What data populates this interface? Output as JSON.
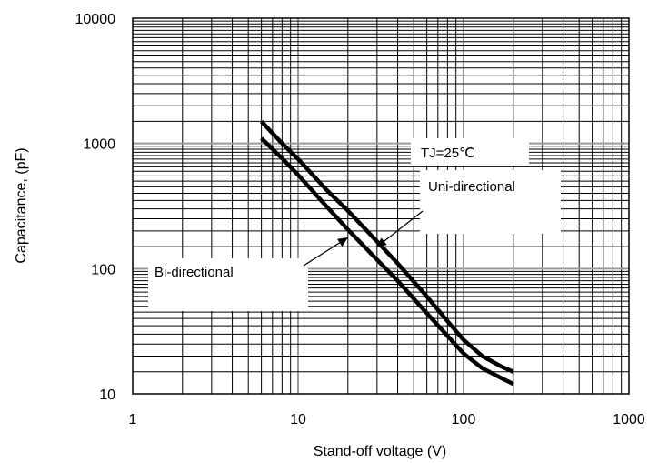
{
  "chart_data": {
    "type": "line",
    "xlabel": "Stand-off voltage (V)",
    "ylabel": "Capacitance, (pF)",
    "xscale": "log",
    "yscale": "log",
    "xlim": [
      1,
      1000
    ],
    "ylim": [
      10,
      10000
    ],
    "x_ticks": [
      "1",
      "10",
      "100",
      "1000"
    ],
    "y_ticks": [
      "10",
      "100",
      "1000",
      "10000"
    ],
    "grid": true,
    "series": [
      {
        "name": "Uni-directional",
        "x": [
          6,
          8,
          10,
          15,
          20,
          30,
          40,
          60,
          80,
          100,
          130,
          170,
          200
        ],
        "y": [
          1500,
          1000,
          750,
          420,
          290,
          165,
          110,
          60,
          38,
          27,
          20,
          16.5,
          15
        ]
      },
      {
        "name": "Bi-directional",
        "x": [
          6,
          8,
          10,
          15,
          20,
          30,
          40,
          60,
          80,
          100,
          130,
          170,
          200
        ],
        "y": [
          1100,
          760,
          560,
          310,
          205,
          118,
          80,
          44,
          29,
          21,
          16,
          13.3,
          12
        ]
      }
    ],
    "annotations": [
      {
        "text": "TJ=25℃"
      },
      {
        "text": "Uni-directional"
      },
      {
        "text": "Bi-directional"
      }
    ]
  }
}
